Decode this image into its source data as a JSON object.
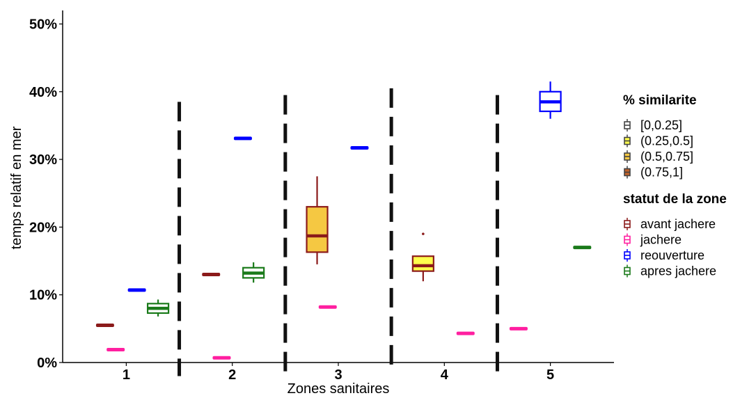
{
  "chart_data": {
    "type": "boxplot",
    "title": "",
    "xlabel": "Zones sanitaires",
    "ylabel": "temps relatif en mer",
    "ylim": [
      0,
      0.52
    ],
    "y_ticks": [
      {
        "value": 0.0,
        "label": "0%"
      },
      {
        "value": 0.1,
        "label": "10%"
      },
      {
        "value": 0.2,
        "label": "20%"
      },
      {
        "value": 0.3,
        "label": "30%"
      },
      {
        "value": 0.4,
        "label": "40%"
      },
      {
        "value": 0.5,
        "label": "50%"
      }
    ],
    "categories": [
      "1",
      "2",
      "3",
      "4",
      "5"
    ],
    "zone_separators": [
      1.5,
      2.5,
      3.5,
      4.5
    ],
    "grid": false,
    "legend_position": "right",
    "legends": [
      {
        "title": "% similarite",
        "entries": [
          {
            "label": "[0,0.25]",
            "fill": "#ffffff"
          },
          {
            "label": "(0.25,0.5]",
            "fill": "#ffff4d"
          },
          {
            "label": "(0.5,0.75]",
            "fill": "#f5c842"
          },
          {
            "label": "(0.75,1]",
            "fill": "#c0622a"
          }
        ]
      },
      {
        "title": "statut de la zone",
        "entries": [
          {
            "label": "avant jachere",
            "color": "#8b1a1a"
          },
          {
            "label": "jachere",
            "color": "#ff1fa0"
          },
          {
            "label": "reouverture",
            "color": "#0000ff"
          },
          {
            "label": "apres jachere",
            "color": "#1a7a1a"
          }
        ]
      }
    ],
    "series": [
      {
        "name": "avant jachere",
        "color": "#8b1a1a",
        "boxes": [
          {
            "x": 0.8,
            "min": 0.055,
            "q1": 0.055,
            "median": 0.055,
            "q3": 0.055,
            "max": 0.055,
            "fill": "#ffffff"
          },
          {
            "x": 1.8,
            "min": 0.13,
            "q1": 0.13,
            "median": 0.13,
            "q3": 0.13,
            "max": 0.13,
            "fill": "#ffffff"
          },
          {
            "x": 2.8,
            "min": 0.145,
            "q1": 0.163,
            "median": 0.187,
            "q3": 0.23,
            "max": 0.275,
            "fill": "#f5c842"
          },
          {
            "x": 3.8,
            "min": 0.12,
            "q1": 0.135,
            "median": 0.143,
            "q3": 0.157,
            "max": 0.157,
            "fill": "#ffff4d",
            "outliers": [
              0.19
            ]
          }
        ]
      },
      {
        "name": "jachere",
        "color": "#ff1fa0",
        "boxes": [
          {
            "x": 0.9,
            "min": 0.019,
            "q1": 0.019,
            "median": 0.019,
            "q3": 0.019,
            "max": 0.019,
            "fill": "#ffffff"
          },
          {
            "x": 1.9,
            "min": 0.007,
            "q1": 0.007,
            "median": 0.007,
            "q3": 0.007,
            "max": 0.007,
            "fill": "#ffffff"
          },
          {
            "x": 2.9,
            "min": 0.082,
            "q1": 0.082,
            "median": 0.082,
            "q3": 0.082,
            "max": 0.082,
            "fill": "#ffffff"
          },
          {
            "x": 4.2,
            "min": 0.043,
            "q1": 0.043,
            "median": 0.043,
            "q3": 0.043,
            "max": 0.043,
            "fill": "#ffffff"
          },
          {
            "x": 4.7,
            "min": 0.05,
            "q1": 0.05,
            "median": 0.05,
            "q3": 0.05,
            "max": 0.05,
            "fill": "#ffffff"
          }
        ]
      },
      {
        "name": "reouverture",
        "color": "#0000ff",
        "boxes": [
          {
            "x": 1.1,
            "min": 0.107,
            "q1": 0.107,
            "median": 0.107,
            "q3": 0.107,
            "max": 0.107,
            "fill": "#ffffff"
          },
          {
            "x": 2.1,
            "min": 0.331,
            "q1": 0.331,
            "median": 0.331,
            "q3": 0.331,
            "max": 0.331,
            "fill": "#ffffff"
          },
          {
            "x": 3.2,
            "min": 0.317,
            "q1": 0.317,
            "median": 0.317,
            "q3": 0.317,
            "max": 0.317,
            "fill": "#ffffff"
          },
          {
            "x": 5.0,
            "min": 0.36,
            "q1": 0.371,
            "median": 0.385,
            "q3": 0.4,
            "max": 0.415,
            "fill": "#ffffff"
          }
        ]
      },
      {
        "name": "apres jachere",
        "color": "#1a7a1a",
        "boxes": [
          {
            "x": 1.3,
            "min": 0.068,
            "q1": 0.073,
            "median": 0.08,
            "q3": 0.087,
            "max": 0.093,
            "fill": "#ffffff"
          },
          {
            "x": 2.2,
            "min": 0.118,
            "q1": 0.125,
            "median": 0.132,
            "q3": 0.14,
            "max": 0.148,
            "fill": "#ffffff"
          },
          {
            "x": 5.3,
            "min": 0.17,
            "q1": 0.17,
            "median": 0.17,
            "q3": 0.17,
            "max": 0.17,
            "fill": "#ffffff"
          }
        ]
      }
    ]
  }
}
